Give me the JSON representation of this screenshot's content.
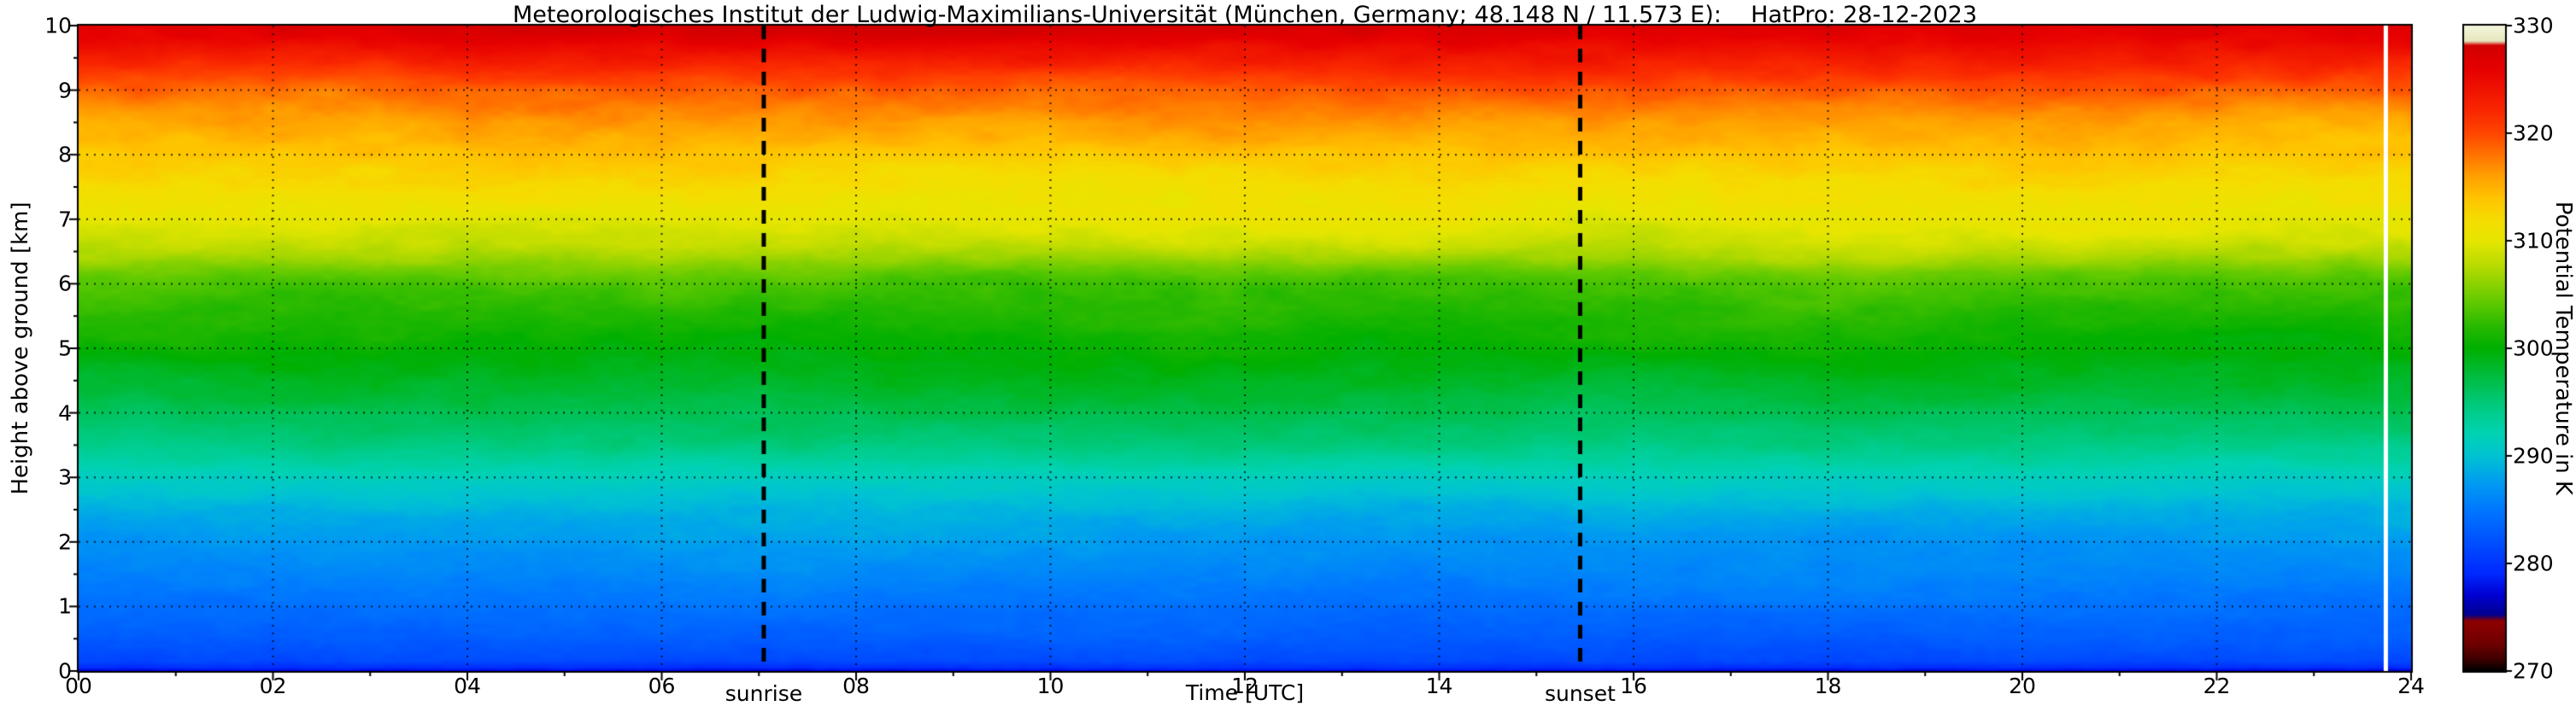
{
  "title": "Meteorologisches Institut der Ludwig-Maximilians-Universität (München, Germany; 48.148 N / 11.573 E):    HatPro: 28-12-2023",
  "axes": {
    "xlabel": "Time [UTC]",
    "ylabel": "Height above ground [km]",
    "x_ticks": [
      "00",
      "02",
      "04",
      "06",
      "08",
      "10",
      "12",
      "14",
      "16",
      "18",
      "20",
      "22",
      "24"
    ],
    "y_ticks": [
      "0",
      "1",
      "2",
      "3",
      "4",
      "5",
      "6",
      "7",
      "8",
      "9",
      "10"
    ]
  },
  "colorbar": {
    "label": "Potential Temperature in K",
    "ticks": [
      "330",
      "320",
      "310",
      "300",
      "290",
      "280",
      "270"
    ]
  },
  "annotations": {
    "sunrise": "sunrise",
    "sunset": "sunset"
  },
  "colors": {
    "background": "#ffffff",
    "axis": "#000000",
    "missing_data_stripe": "#ffffff"
  },
  "chart_data": {
    "type": "heatmap",
    "title": "Meteorologisches Institut der Ludwig-Maximilians-Universität (München, Germany; 48.148 N / 11.573 E):    HatPro: 28-12-2023",
    "instrument": "HatPro",
    "date": "28-12-2023",
    "xlabel": "Time [UTC]",
    "ylabel": "Height above ground [km]",
    "colorbar_label": "Potential Temperature in K",
    "x_range_utc": [
      0,
      24
    ],
    "y_range_km": [
      0,
      10
    ],
    "value_range_K": [
      270,
      330
    ],
    "x_tick_values": [
      0,
      2,
      4,
      6,
      8,
      10,
      12,
      14,
      16,
      18,
      20,
      22,
      24
    ],
    "y_tick_values": [
      0,
      1,
      2,
      3,
      4,
      5,
      6,
      7,
      8,
      9,
      10
    ],
    "colorbar_tick_values": [
      330,
      320,
      310,
      300,
      290,
      280,
      270
    ],
    "grid": true,
    "sunrise_utc": 7.05,
    "sunset_utc": 15.45,
    "missing_data_utc": 23.74,
    "theta_profile": {
      "height_km": [
        0.0,
        0.05,
        0.15,
        0.5,
        1.0,
        1.5,
        2.0,
        2.5,
        3.0,
        3.5,
        4.0,
        4.5,
        5.0,
        5.5,
        6.0,
        6.2,
        6.4,
        6.6,
        7.0,
        7.5,
        8.0,
        8.5,
        9.0,
        9.2,
        9.4,
        9.6,
        9.8,
        10.0
      ],
      "theta_K": [
        277.5,
        279.5,
        281.5,
        283.0,
        284.5,
        286.0,
        287.3,
        289.0,
        291.5,
        294.5,
        296.5,
        298.3,
        300.0,
        301.5,
        303.5,
        305.0,
        307.0,
        308.5,
        310.3,
        312.0,
        313.8,
        315.8,
        318.5,
        320.0,
        322.0,
        324.0,
        326.0,
        327.5
      ]
    },
    "colormap_stops": [
      [
        270.0,
        "#000000"
      ],
      [
        271.0,
        "#3c0000"
      ],
      [
        272.5,
        "#700000"
      ],
      [
        274.6,
        "#8e0000"
      ],
      [
        275.2,
        "#000090"
      ],
      [
        277.0,
        "#0000d2"
      ],
      [
        279.0,
        "#0028ff"
      ],
      [
        282.0,
        "#0050ff"
      ],
      [
        285.0,
        "#0078ff"
      ],
      [
        287.5,
        "#009cf0"
      ],
      [
        290.0,
        "#00c3d2"
      ],
      [
        292.0,
        "#00d2b4"
      ],
      [
        294.0,
        "#00cd8c"
      ],
      [
        296.0,
        "#00c360"
      ],
      [
        298.0,
        "#00b930"
      ],
      [
        300.0,
        "#00af00"
      ],
      [
        302.0,
        "#28b900"
      ],
      [
        304.0,
        "#5ac800"
      ],
      [
        306.0,
        "#8cd200"
      ],
      [
        308.0,
        "#bedc00"
      ],
      [
        310.0,
        "#e6e600"
      ],
      [
        312.0,
        "#f5dc00"
      ],
      [
        314.0,
        "#ffc300"
      ],
      [
        316.0,
        "#ffa000"
      ],
      [
        318.0,
        "#ff7300"
      ],
      [
        320.0,
        "#ff4600"
      ],
      [
        322.0,
        "#fa2800"
      ],
      [
        324.0,
        "#f01400"
      ],
      [
        326.0,
        "#e60000"
      ],
      [
        328.2,
        "#d20000"
      ],
      [
        328.6,
        "#e6e6be"
      ],
      [
        330.0,
        "#f5f5dc"
      ]
    ]
  }
}
